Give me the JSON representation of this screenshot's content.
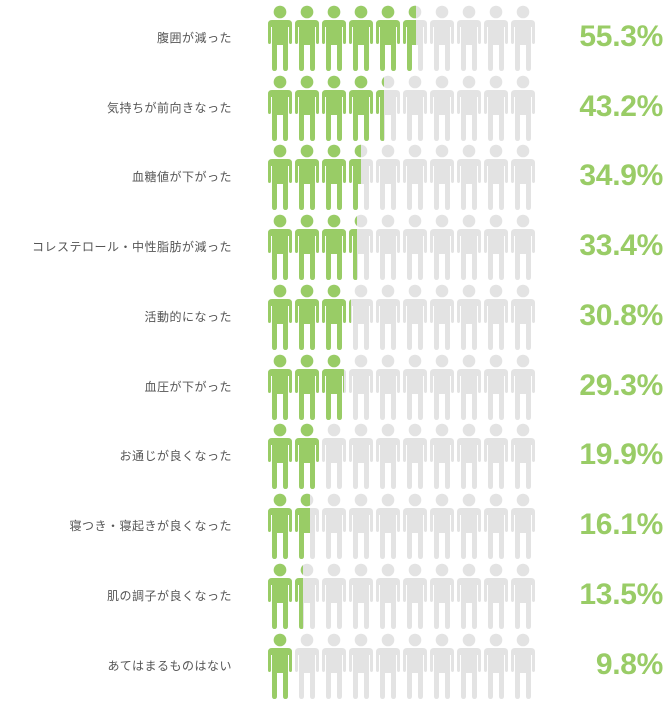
{
  "chart_data": {
    "type": "pictograph",
    "title": "",
    "units_per_row": 10,
    "unit_value_percent": 10,
    "colors": {
      "filled": "#99cc66",
      "empty": "#e3e3e3",
      "label": "#555555",
      "value": "#99cc66"
    },
    "categories": [
      "腹囲が減った",
      "気持ちが前向きなった",
      "血糖値が下がった",
      "コレステロール・中性脂肪が減った",
      "活動的になった",
      "血圧が下がった",
      "お通じが良くなった",
      "寝つき・寝起きが良くなった",
      "肌の調子が良くなった",
      "あてはまるものはない"
    ],
    "values": [
      55.3,
      43.2,
      34.9,
      33.4,
      30.8,
      29.3,
      19.9,
      16.1,
      13.5,
      9.8
    ],
    "value_labels": [
      "55.3%",
      "43.2%",
      "34.9%",
      "33.4%",
      "30.8%",
      "29.3%",
      "19.9%",
      "16.1%",
      "13.5%",
      "9.8%"
    ],
    "icon": "person-icon"
  },
  "rows": [
    {
      "label": "腹囲が減った",
      "value": 55.3,
      "value_label": "55.3%"
    },
    {
      "label": "気持ちが前向きなった",
      "value": 43.2,
      "value_label": "43.2%"
    },
    {
      "label": "血糖値が下がった",
      "value": 34.9,
      "value_label": "34.9%"
    },
    {
      "label": "コレステロール・中性脂肪が減った",
      "value": 33.4,
      "value_label": "33.4%"
    },
    {
      "label": "活動的になった",
      "value": 30.8,
      "value_label": "30.8%"
    },
    {
      "label": "血圧が下がった",
      "value": 29.3,
      "value_label": "29.3%"
    },
    {
      "label": "お通じが良くなった",
      "value": 19.9,
      "value_label": "19.9%"
    },
    {
      "label": "寝つき・寝起きが良くなった",
      "value": 16.1,
      "value_label": "16.1%"
    },
    {
      "label": "肌の調子が良くなった",
      "value": 13.5,
      "value_label": "13.5%"
    },
    {
      "label": "あてはまるものはない",
      "value": 9.8,
      "value_label": "9.8%"
    }
  ]
}
